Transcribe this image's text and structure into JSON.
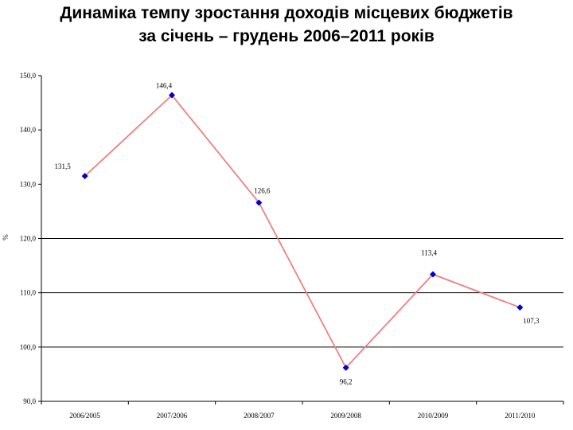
{
  "title_line1": "Динаміка темпу зростання доходів місцевих бюджетів",
  "title_line2": "за січень – грудень 2006–2011 років",
  "chart_data": {
    "type": "line",
    "categories": [
      "2006/2005",
      "2007/2006",
      "2008/2007",
      "2009/2008",
      "2010/2009",
      "2011/2010"
    ],
    "values": [
      131.5,
      146.4,
      126.6,
      96.2,
      113.4,
      107.3
    ],
    "value_labels": [
      "131,5",
      "146,4",
      "126,6",
      "96,2",
      "113,4",
      "107,3"
    ],
    "ylabel": "%",
    "ylim": [
      90,
      150
    ],
    "yticks": [
      "90,0",
      "100,0",
      "110,0",
      "120,0",
      "130,0",
      "140,0",
      "150,0"
    ],
    "ytick_values": [
      90,
      100,
      110,
      120,
      130,
      140,
      150
    ],
    "gridlines": [
      100,
      110,
      120
    ],
    "line_color": "#f08080",
    "marker_color": "#0000cc",
    "grid_color": "#000000"
  }
}
